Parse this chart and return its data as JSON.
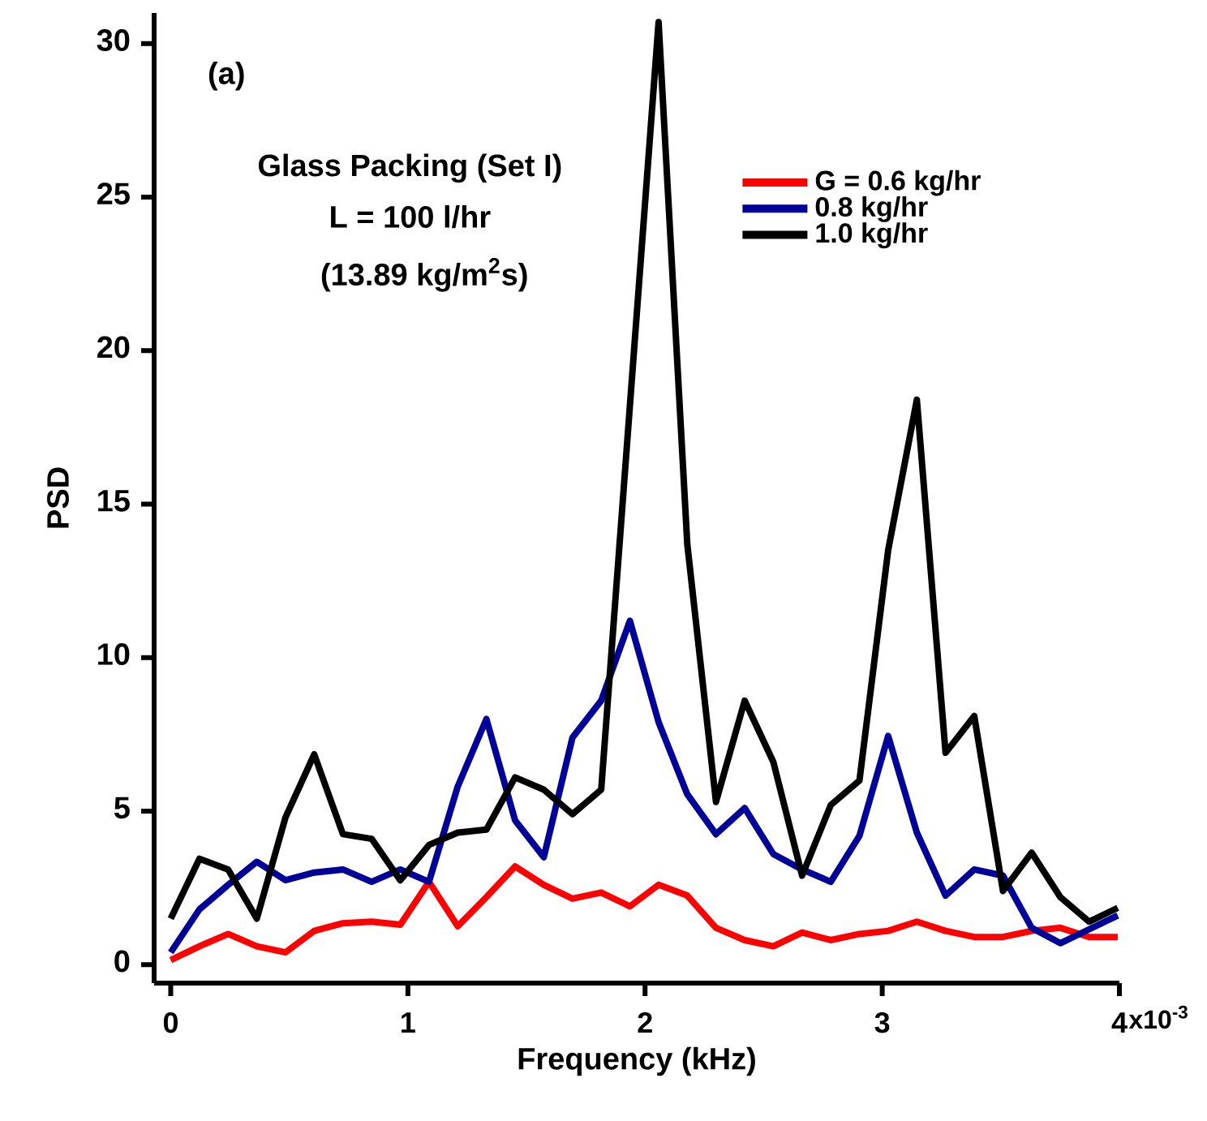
{
  "chart_data": {
    "type": "line",
    "xlabel": "Frequency (kHz)",
    "ylabel": "PSD",
    "annotations": [
      "(a)",
      "Glass Packing (Set I)",
      "L = 100 l/hr",
      "(13.89 kg/m$^{2}$s)",
      "x10$^{-3}$"
    ],
    "xlim": [
      -0.07,
      4
    ],
    "ylim": [
      -0.6,
      31
    ],
    "xticks": [
      0,
      1,
      2,
      3,
      4
    ],
    "yticks": [
      0,
      5,
      10,
      15,
      20,
      25,
      30
    ],
    "grid": false,
    "legend": "top right",
    "line_style": "solid",
    "marker": "none",
    "series": [
      {
        "name": "G = 0.6 kg/hr",
        "color": "#ff0000",
        "x": [
          0,
          0.121,
          0.242,
          0.363,
          0.484,
          0.605,
          0.726,
          0.847,
          0.968,
          1.089,
          1.21,
          1.331,
          1.452,
          1.573,
          1.694,
          1.815,
          1.936,
          2.057,
          2.178,
          2.299,
          2.42,
          2.541,
          2.662,
          2.783,
          2.904,
          3.025,
          3.146,
          3.267,
          3.388,
          3.509,
          3.63,
          3.751,
          3.872,
          3.993
        ],
        "values": [
          0.15,
          0.6,
          1.0,
          0.6,
          0.4,
          1.1,
          1.35,
          1.4,
          1.3,
          2.7,
          1.25,
          2.2,
          3.2,
          2.6,
          2.15,
          2.35,
          1.9,
          2.6,
          2.25,
          1.2,
          0.8,
          0.6,
          1.05,
          0.8,
          1.0,
          1.1,
          1.4,
          1.1,
          0.9,
          0.9,
          1.1,
          1.2,
          0.9,
          0.9
        ]
      },
      {
        "name": "0.8 kg/hr",
        "color": "#000099",
        "x": [
          0,
          0.121,
          0.242,
          0.363,
          0.484,
          0.605,
          0.726,
          0.847,
          0.968,
          1.089,
          1.21,
          1.331,
          1.452,
          1.573,
          1.694,
          1.815,
          1.936,
          2.057,
          2.178,
          2.299,
          2.42,
          2.541,
          2.662,
          2.783,
          2.904,
          3.025,
          3.146,
          3.267,
          3.388,
          3.509,
          3.63,
          3.751,
          3.872,
          3.993
        ],
        "values": [
          0.4,
          1.8,
          2.6,
          3.35,
          2.75,
          3.0,
          3.1,
          2.7,
          3.1,
          2.7,
          5.8,
          8.0,
          4.7,
          3.5,
          7.4,
          8.6,
          11.2,
          7.9,
          5.55,
          4.25,
          5.1,
          3.6,
          3.1,
          2.7,
          4.2,
          7.45,
          4.3,
          2.25,
          3.1,
          2.9,
          1.2,
          0.7,
          1.15,
          1.6
        ]
      },
      {
        "name": "1.0 kg/hr",
        "color": "#000000",
        "x": [
          0,
          0.121,
          0.242,
          0.363,
          0.484,
          0.605,
          0.726,
          0.847,
          0.968,
          1.089,
          1.21,
          1.331,
          1.452,
          1.573,
          1.694,
          1.815,
          2.057,
          2.178,
          2.299,
          2.42,
          2.541,
          2.662,
          2.783,
          2.904,
          3.025,
          3.146,
          3.267,
          3.388,
          3.509,
          3.63,
          3.751,
          3.872,
          3.993
        ],
        "values": [
          1.5,
          3.45,
          3.1,
          1.5,
          4.8,
          6.85,
          4.25,
          4.1,
          2.75,
          3.9,
          4.3,
          4.4,
          6.1,
          5.7,
          4.9,
          5.7,
          30.7,
          13.7,
          5.3,
          8.6,
          6.6,
          2.9,
          5.2,
          6.0,
          13.5,
          18.4,
          6.9,
          8.1,
          2.4,
          3.65,
          2.2,
          1.4,
          1.85
        ]
      }
    ]
  }
}
